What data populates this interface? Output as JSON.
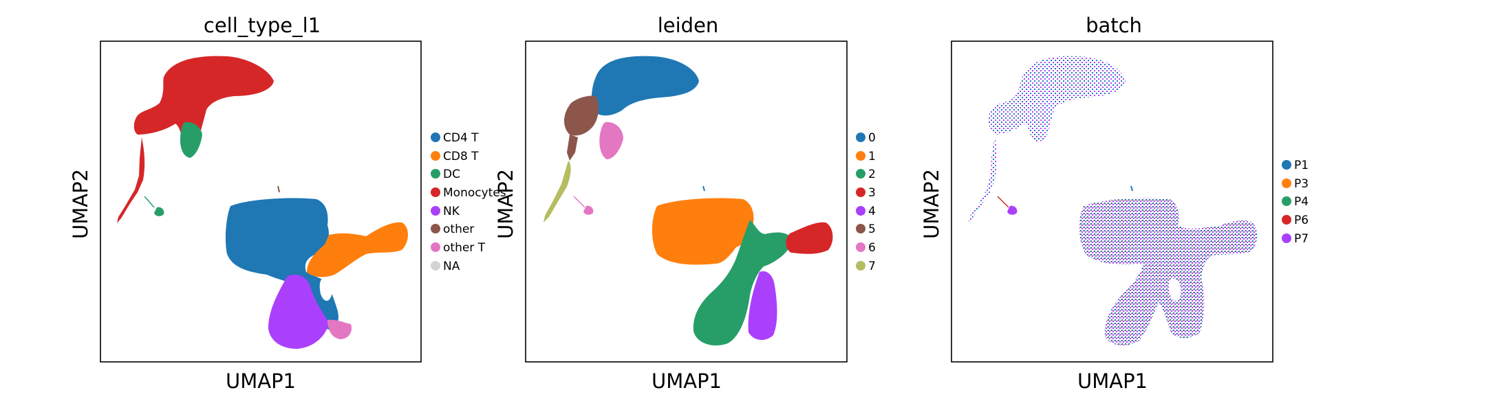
{
  "chart_data": [
    {
      "type": "scatter",
      "title": "cell_type_l1",
      "xlabel": "UMAP1",
      "ylabel": "UMAP2",
      "grid": false,
      "legend_position": "right",
      "legend": [
        {
          "label": "CD4 T",
          "color": "#1f77b4"
        },
        {
          "label": "CD8 T",
          "color": "#ff7f0e"
        },
        {
          "label": "DC",
          "color": "#279e68"
        },
        {
          "label": "Monocytes",
          "color": "#d62728"
        },
        {
          "label": "NK",
          "color": "#aa40fc"
        },
        {
          "label": "other",
          "color": "#8c564b"
        },
        {
          "label": "other T",
          "color": "#e377c2"
        },
        {
          "label": "NA",
          "color": "#d3d3d3"
        }
      ]
    },
    {
      "type": "scatter",
      "title": "leiden",
      "xlabel": "UMAP1",
      "ylabel": "UMAP2",
      "grid": false,
      "legend_position": "right",
      "legend": [
        {
          "label": "0",
          "color": "#1f77b4"
        },
        {
          "label": "1",
          "color": "#ff7f0e"
        },
        {
          "label": "2",
          "color": "#279e68"
        },
        {
          "label": "3",
          "color": "#d62728"
        },
        {
          "label": "4",
          "color": "#aa40fc"
        },
        {
          "label": "5",
          "color": "#8c564b"
        },
        {
          "label": "6",
          "color": "#e377c2"
        },
        {
          "label": "7",
          "color": "#b5bd61"
        }
      ]
    },
    {
      "type": "scatter",
      "title": "batch",
      "xlabel": "UMAP1",
      "ylabel": "UMAP2",
      "grid": false,
      "legend_position": "right",
      "legend": [
        {
          "label": "P1",
          "color": "#1f77b4"
        },
        {
          "label": "P3",
          "color": "#ff7f0e"
        },
        {
          "label": "P4",
          "color": "#279e68"
        },
        {
          "label": "P6",
          "color": "#d62728"
        },
        {
          "label": "P7",
          "color": "#aa40fc"
        }
      ]
    }
  ]
}
